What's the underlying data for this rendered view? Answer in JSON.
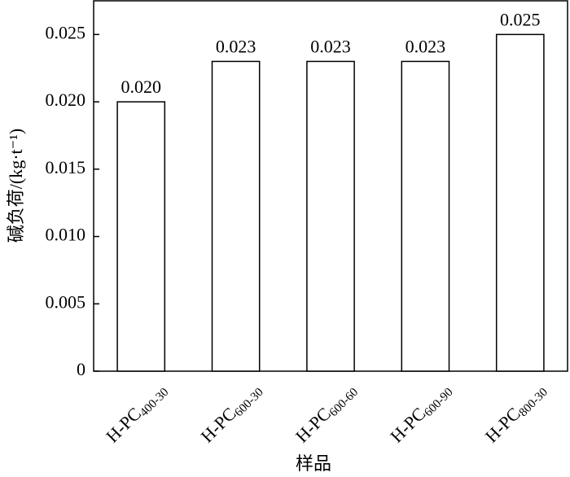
{
  "chart_data": {
    "type": "bar",
    "x_label": "样品",
    "y_label": "碱负荷/(kg·t⁻¹)",
    "categories": [
      "H-PC400-30",
      "H-PC600-30",
      "H-PC600-60",
      "H-PC600-90",
      "H-PC800-30"
    ],
    "values": [
      0.02,
      0.023,
      0.023,
      0.023,
      0.025
    ],
    "value_labels": [
      "0.020",
      "0.023",
      "0.023",
      "0.023",
      "0.025"
    ],
    "color": "#ffffff",
    "edge_color": "#000000",
    "ylim": [
      0,
      0.0275
    ],
    "yticks": [
      0,
      0.005,
      {
        "value": 0.01,
        "label": "0.010"
      },
      0.015,
      {
        "value": 0.02,
        "label": "0.020"
      },
      0.025
    ],
    "grid": false
  }
}
